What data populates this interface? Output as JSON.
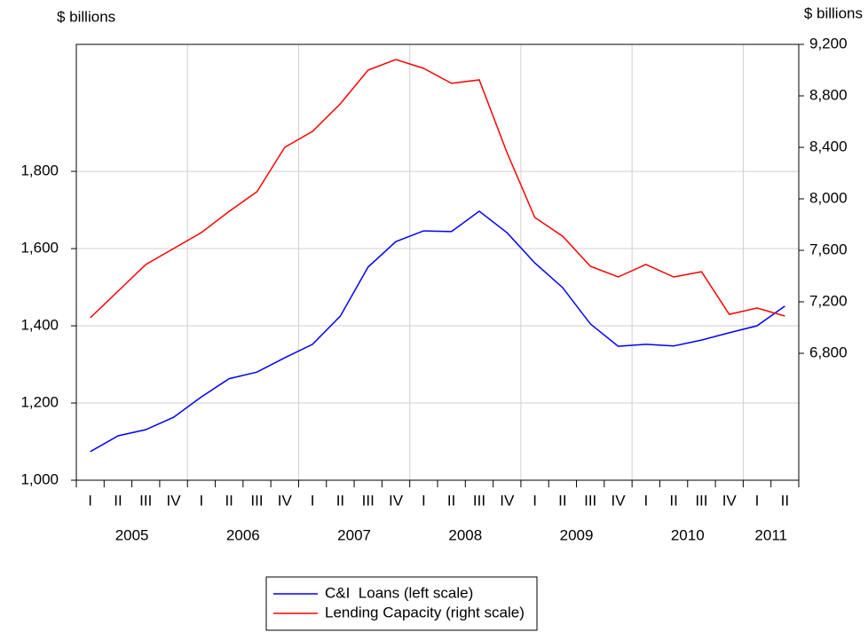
{
  "chart_data": {
    "type": "line",
    "y_axis_label": "$ billions",
    "y2_axis_label": "$ billions",
    "categories": [
      "I",
      "II",
      "III",
      "IV",
      "I",
      "II",
      "III",
      "IV",
      "I",
      "II",
      "III",
      "IV",
      "I",
      "II",
      "III",
      "IV",
      "I",
      "II",
      "III",
      "IV",
      "I",
      "II",
      "III",
      "IV",
      "I",
      "II"
    ],
    "years": [
      "2005",
      "2006",
      "2007",
      "2008",
      "2009",
      "2010",
      "2011"
    ],
    "series": [
      {
        "name": "C&I  Loans (left scale)",
        "color": "#0000ff",
        "values": [
          1074,
          1115,
          1131,
          1163,
          1216,
          1263,
          1280,
          1317,
          1352,
          1425,
          1552,
          1618,
          1646,
          1644,
          1697,
          1641,
          1563,
          1499,
          1405,
          1347,
          1352,
          1348,
          1363,
          1382,
          1400,
          1451
        ]
      },
      {
        "name": "Lending Capacity (right scale)",
        "color": "#ff0000",
        "axis": "y2",
        "values": [
          7076,
          7283,
          7490,
          7614,
          7738,
          7903,
          8055,
          8400,
          8524,
          8738,
          9000,
          9083,
          9014,
          8897,
          8924,
          8359,
          7855,
          7710,
          7476,
          7393,
          7490,
          7393,
          7434,
          7103,
          7152,
          7090
        ]
      }
    ],
    "ylim": [
      1000,
      2129
    ],
    "yticks": [
      {
        "value": 1000,
        "label": "1,000"
      },
      {
        "value": 1200,
        "label": "1,200"
      },
      {
        "value": 1400,
        "label": "1,400"
      },
      {
        "value": 1600,
        "label": "1,600"
      },
      {
        "value": 1800,
        "label": "1,800"
      }
    ],
    "y2lim": [
      5814,
      9200
    ],
    "y2ticks": [
      {
        "value": 6800,
        "label": "6,800"
      },
      {
        "value": 7200,
        "label": "7,200"
      },
      {
        "value": 7600,
        "label": "7,600"
      },
      {
        "value": 8000,
        "label": "8,000"
      },
      {
        "value": 8400,
        "label": "8,400"
      },
      {
        "value": 8800,
        "label": "8,800"
      },
      {
        "value": 9200,
        "label": "9,200"
      }
    ],
    "grid": true,
    "legend": "bottom"
  }
}
